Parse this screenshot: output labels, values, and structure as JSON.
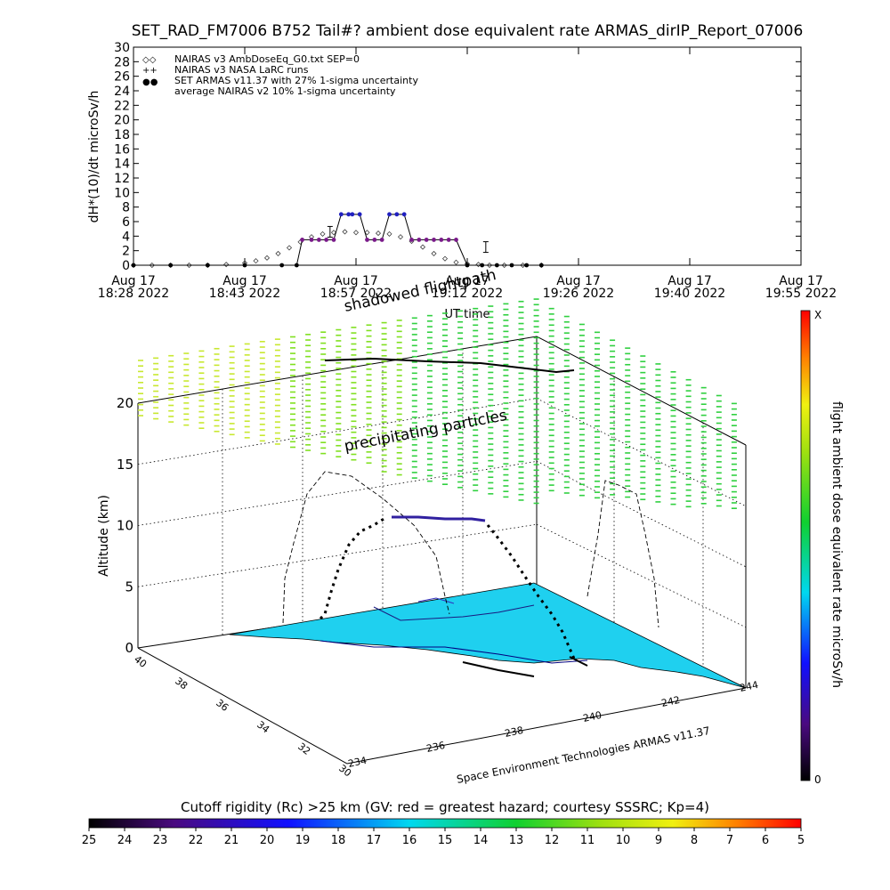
{
  "title": "SET_RAD_FM7006  B752 Tail#? ambient dose equivalent rate ARMAS_dirIP_Report_07006",
  "top_chart": {
    "ylabel": "dH*(10)/dt microSv/h",
    "xlabel": "UT time",
    "ylim": [
      0,
      30
    ],
    "yticks": [
      0,
      2,
      4,
      6,
      8,
      10,
      12,
      14,
      16,
      18,
      20,
      22,
      24,
      26,
      28,
      30
    ],
    "xticks": [
      {
        "l1": "Aug 17",
        "l2": "18:28 2022"
      },
      {
        "l1": "Aug 17",
        "l2": "18:43 2022"
      },
      {
        "l1": "Aug 17",
        "l2": "18:57 2022"
      },
      {
        "l1": "Aug 17",
        "l2": "19:12 2022"
      },
      {
        "l1": "Aug 17",
        "l2": "19:26 2022"
      },
      {
        "l1": "Aug 17",
        "l2": "19:40 2022"
      },
      {
        "l1": "Aug 17",
        "l2": "19:55 2022"
      }
    ],
    "legend": [
      {
        "sym": "◇◇",
        "text": "NAIRAS v3 AmbDoseEq_G0.txt SEP=0"
      },
      {
        "sym": "++",
        "text": "NAIRAS v3 NASA LaRC runs"
      },
      {
        "sym": "●●",
        "text": "SET ARMAS v11.37 with 27% 1-sigma uncertainty"
      },
      {
        "sym": "",
        "text": "average NAIRAS v2 10% 1-sigma uncertainty"
      }
    ],
    "colors": {
      "armas_high": "#2020c0",
      "armas_mid": "#7a1a8a",
      "nairas": "#404040"
    }
  },
  "chart_data": {
    "type": "line",
    "x_unit": "minutes since 18:28",
    "series": [
      {
        "name": "NAIRAS v3 AmbDoseEq_G0.txt SEP=0",
        "x": [
          0,
          5,
          10,
          15,
          20,
          25,
          30,
          33,
          36,
          39,
          42,
          45,
          48,
          51,
          54,
          57,
          60,
          63,
          66,
          69,
          72,
          75,
          78,
          81,
          84,
          87,
          90,
          93,
          96,
          100,
          105,
          110
        ],
        "values": [
          0,
          0,
          0,
          0,
          0,
          0.1,
          0.3,
          0.6,
          1.0,
          1.6,
          2.4,
          3.2,
          3.9,
          4.3,
          4.5,
          4.6,
          4.5,
          4.5,
          4.4,
          4.3,
          3.9,
          3.3,
          2.5,
          1.6,
          0.9,
          0.4,
          0.2,
          0.1,
          0,
          0,
          0,
          0
        ]
      },
      {
        "name": "SET ARMAS v11.37 with 27% 1-sigma uncertainty",
        "x": [
          0,
          10,
          20,
          30,
          40,
          44,
          45.5,
          48,
          50,
          52,
          54,
          56,
          58,
          59,
          61,
          63,
          65,
          67,
          69,
          71,
          73,
          75,
          77,
          79,
          81,
          83,
          85,
          87,
          90,
          94,
          98,
          102,
          106,
          110
        ],
        "values": [
          0,
          0,
          0,
          0,
          0,
          0,
          3.5,
          3.5,
          3.5,
          3.5,
          3.5,
          7,
          7,
          7,
          7,
          3.5,
          3.5,
          3.5,
          7,
          7,
          7,
          3.5,
          3.5,
          3.5,
          3.5,
          3.5,
          3.5,
          3.5,
          0,
          0,
          0,
          0,
          0,
          0
        ]
      }
    ]
  },
  "plot3d": {
    "overlay_label_1": "shadowed flightpath",
    "overlay_label_2": "precipitating particles",
    "zlabel": "Altitude (km)",
    "zticks": [
      "0",
      "5",
      "10",
      "15",
      "20"
    ],
    "yticks": [
      "40",
      "38",
      "36",
      "34",
      "32",
      "30"
    ],
    "xticks": [
      "234",
      "236",
      "238",
      "240",
      "242",
      "244"
    ],
    "credit": "Space Environment Technologies ARMAS v11.37",
    "surface_color": "#1fd0ef"
  },
  "colorbar_right": {
    "label": "flight ambient dose equivalent rate microSv/h",
    "top": "X",
    "bottom": "0"
  },
  "colorbar_bottom": {
    "title": "Cutoff rigidity (Rc) >25 km (GV: red = greatest hazard; courtesy SSSRC; Kp=4)",
    "ticks": [
      "25",
      "24",
      "23",
      "22",
      "21",
      "20",
      "19",
      "18",
      "17",
      "16",
      "15",
      "14",
      "13",
      "12",
      "11",
      "10",
      "9",
      "8",
      "7",
      "6",
      "5"
    ]
  }
}
